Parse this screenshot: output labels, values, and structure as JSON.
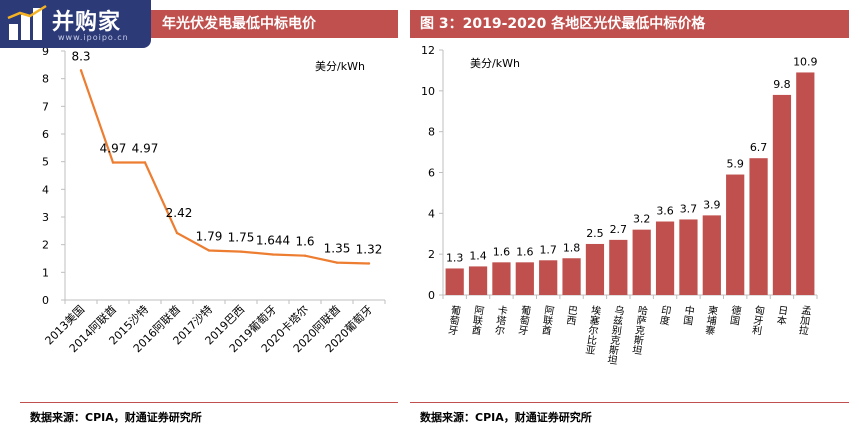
{
  "logo": {
    "name": "并购家",
    "url": "www.ipoipo.cn"
  },
  "left": {
    "title_fragment": "年光伏发电最低中标电价",
    "source": "数据来源：CPIA，财通证券研究所"
  },
  "right": {
    "title": "图 3：2019-2020 各地区光伏最低中标价格",
    "source": "数据来源：CPIA，财通证券研究所"
  },
  "chart_data": [
    {
      "type": "line",
      "title": "年光伏发电最低中标电价",
      "unit_label": "美分/kWh",
      "categories": [
        "2013美国",
        "2014阿联酋",
        "2015沙特",
        "2016阿联酋",
        "2017沙特",
        "2019巴西",
        "2019葡萄牙",
        "2020卡塔尔",
        "2020阿联酋",
        "2020葡萄牙"
      ],
      "values": [
        8.3,
        4.97,
        4.97,
        2.42,
        1.79,
        1.75,
        1.644,
        1.6,
        1.35,
        1.32
      ],
      "data_labels": [
        "8.3",
        "4.97",
        "4.97",
        "2.42",
        "1.79",
        "1.75",
        "1.644",
        "1.6",
        "1.35",
        "1.32"
      ],
      "ylim": [
        0,
        9
      ],
      "yticks": [
        0,
        1,
        2,
        3,
        4,
        5,
        6,
        7,
        8,
        9
      ],
      "color": "#ed7d31",
      "grid": false
    },
    {
      "type": "bar",
      "title": "图 3：2019-2020 各地区光伏最低中标价格",
      "unit_label": "美分/kWh",
      "categories": [
        "葡萄牙",
        "阿联酋",
        "卡塔尔",
        "葡萄牙",
        "阿联酋",
        "巴西",
        "埃塞尔比亚",
        "乌兹别克斯坦",
        "哈萨克斯坦",
        "印度",
        "中国",
        "柬埔寨",
        "德国",
        "匈牙利",
        "日本",
        "孟加拉"
      ],
      "values": [
        1.3,
        1.4,
        1.6,
        1.6,
        1.7,
        1.8,
        2.5,
        2.7,
        3.2,
        3.6,
        3.7,
        3.9,
        5.9,
        6.7,
        9.8,
        10.9
      ],
      "data_labels": [
        "1.3",
        "1.4",
        "1.6",
        "1.6",
        "1.7",
        "1.8",
        "2.5",
        "2.7",
        "3.2",
        "3.6",
        "3.7",
        "3.9",
        "5.9",
        "6.7",
        "9.8",
        "10.9"
      ],
      "ylim": [
        0,
        12
      ],
      "yticks": [
        0,
        2,
        4,
        6,
        8,
        10,
        12
      ],
      "color": "#c0504d",
      "grid": false
    }
  ]
}
